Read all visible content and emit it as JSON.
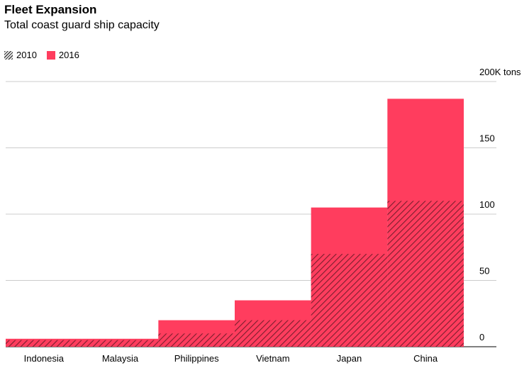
{
  "chart_data": {
    "type": "bar",
    "title": "Fleet Expansion",
    "subtitle": "Total coast guard ship capacity",
    "categories": [
      "Indonesia",
      "Malaysia",
      "Philippines",
      "Vietnam",
      "Japan",
      "China"
    ],
    "series": [
      {
        "name": "2010",
        "values": [
          5,
          5,
          10,
          20,
          70,
          110
        ],
        "color": "#7a1f2e"
      },
      {
        "name": "2016",
        "values": [
          6,
          6,
          20,
          35,
          105,
          187
        ],
        "color": "#ff3d5e"
      }
    ],
    "ylim": [
      0,
      200
    ],
    "yticks": [
      0,
      50,
      100,
      150,
      200
    ],
    "ytick_labels": [
      "0",
      "50",
      "100",
      "150",
      "200K tons"
    ],
    "grid": true,
    "legend_position": "top-left",
    "overlay": "2010 drawn as hatched overlay on 2016 bar"
  }
}
